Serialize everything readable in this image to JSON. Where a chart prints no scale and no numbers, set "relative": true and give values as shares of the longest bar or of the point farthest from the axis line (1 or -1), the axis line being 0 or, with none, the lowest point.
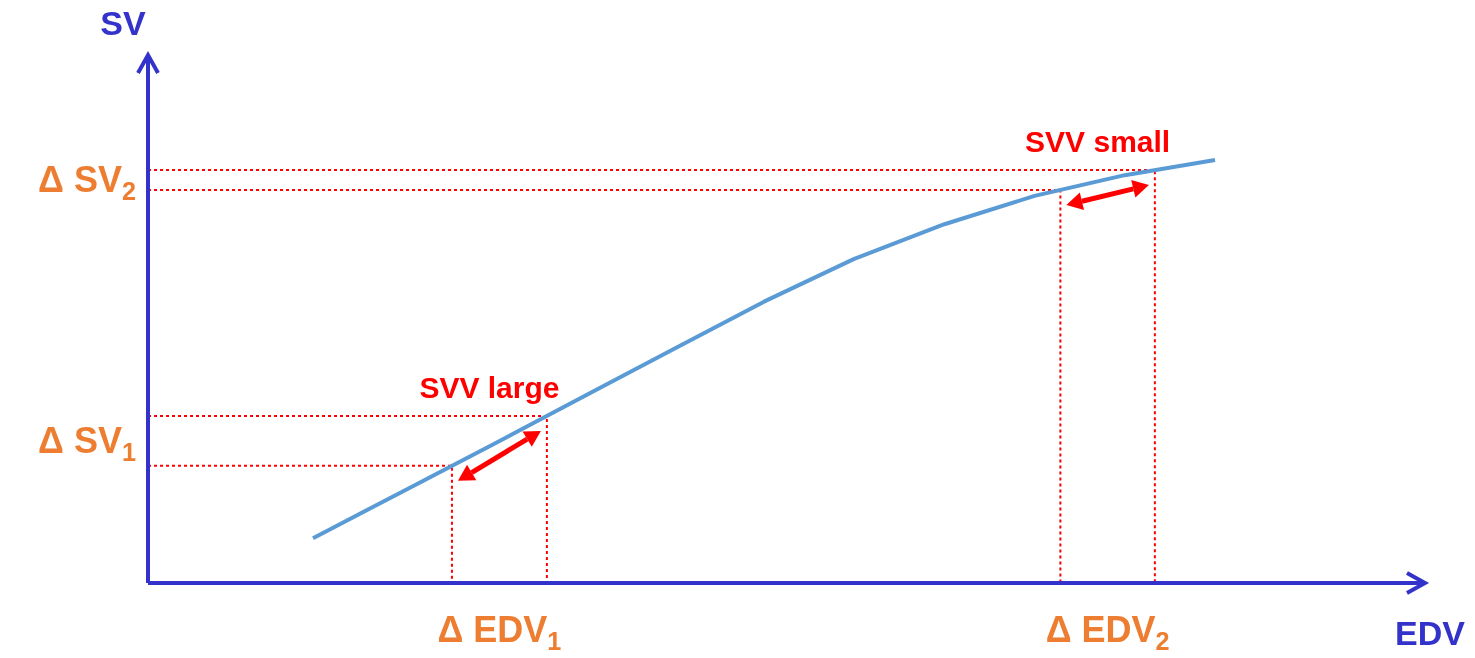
{
  "chart_data": {
    "type": "line",
    "xlabel": "EDV",
    "ylabel": "SV",
    "relative": true,
    "categories": [
      null,
      null,
      null,
      null,
      null,
      null,
      null,
      null,
      null,
      null,
      null
    ],
    "series": [
      {
        "color": "#5b9bd5",
        "values": [
          0.106,
          0.217,
          0.328,
          0.441,
          0.553,
          0.665,
          0.766,
          0.848,
          0.915,
          0.964,
          1
        ]
      }
    ],
    "ref_lines": [
      {
        "axis": "y",
        "value": 0.277,
        "color": "#ff0000",
        "line_style": "dotted"
      },
      {
        "axis": "y",
        "value": 0.395,
        "color": "#ff0000",
        "line_style": "dotted"
      },
      {
        "axis": "y",
        "value": 0.929,
        "color": "#ff0000",
        "line_style": "dotted"
      },
      {
        "axis": "y",
        "value": 0.976,
        "color": "#ff0000",
        "line_style": "dotted"
      }
    ],
    "annotations": [
      "Δ SV$_{1}$",
      "Δ SV$_{2}$",
      "Δ EDV$_{1}$",
      "Δ EDV$_{2}$",
      "SVV large",
      "SVV small"
    ],
    "line_style": "solid"
  }
}
